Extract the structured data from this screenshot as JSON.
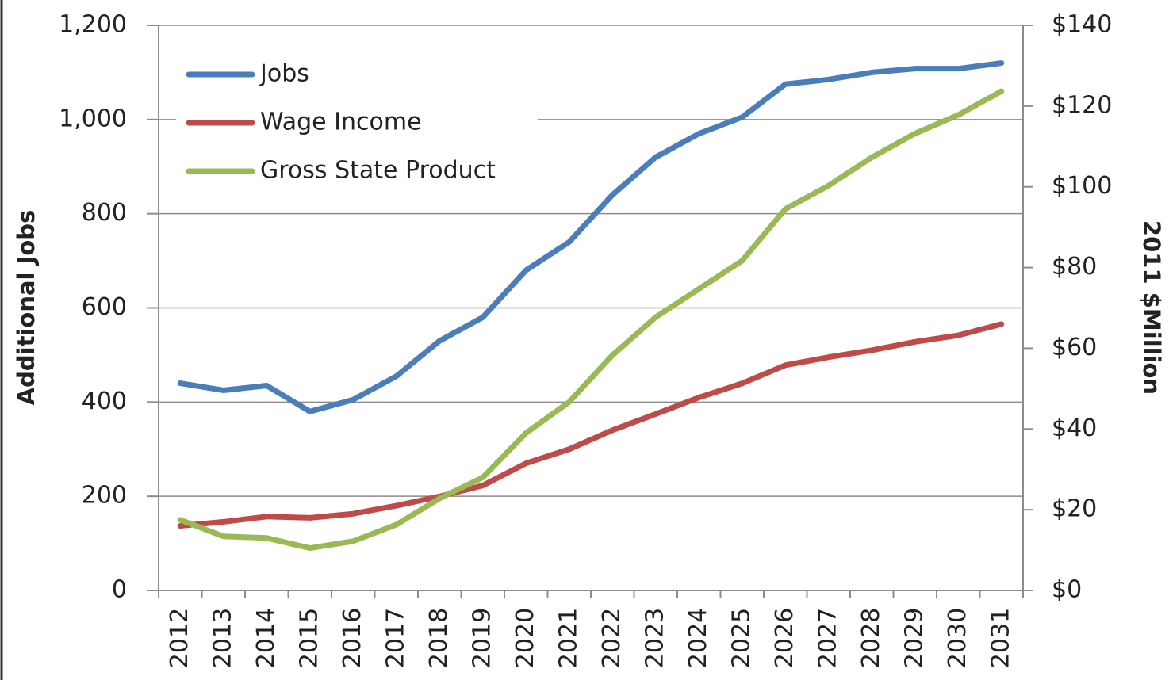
{
  "chart_data": {
    "type": "line",
    "categories": [
      "2012",
      "2013",
      "2014",
      "2015",
      "2016",
      "2017",
      "2018",
      "2019",
      "2020",
      "2021",
      "2022",
      "2023",
      "2024",
      "2025",
      "2026",
      "2027",
      "2028",
      "2029",
      "2030",
      "2031"
    ],
    "series": [
      {
        "name": "Jobs",
        "color": "#4a7ebb",
        "values": [
          440,
          425,
          435,
          380,
          405,
          455,
          530,
          580,
          680,
          740,
          840,
          920,
          970,
          1005,
          1075,
          1085,
          1100,
          1108,
          1108,
          1120
        ]
      },
      {
        "name": "Wage Income",
        "color": "#be4b48",
        "axis": "y2",
        "values": [
          16,
          17,
          18.3,
          18,
          19,
          21,
          23.3,
          26,
          31.5,
          35,
          39.7,
          43.7,
          47.8,
          51.3,
          55.8,
          57.8,
          59.5,
          61.6,
          63.2,
          66
        ]
      },
      {
        "name": "Gross State Product",
        "color": "#98b954",
        "axis": "y2",
        "values": [
          17.5,
          13.4,
          13,
          10.5,
          12.2,
          16.3,
          22.8,
          28,
          39,
          46.7,
          58.3,
          67.7,
          74.7,
          81.7,
          94.5,
          100.3,
          107.3,
          113.2,
          117.8,
          123.7
        ]
      }
    ],
    "y_label": "Additional Jobs",
    "y2_label": "2011 $Million",
    "ylim": [
      0,
      1200
    ],
    "yticks": [
      0,
      200,
      400,
      600,
      800,
      {
        "value": 1000,
        "label": "1,000"
      },
      {
        "value": 1200,
        "label": "1,200"
      }
    ],
    "y2lim": [
      0,
      140
    ],
    "y2ticks": [
      {
        "value": 0,
        "label": "$0"
      },
      {
        "value": 20,
        "label": "$20"
      },
      {
        "value": 40,
        "label": "$40"
      },
      {
        "value": 60,
        "label": "$60"
      },
      {
        "value": 80,
        "label": "$80"
      },
      {
        "value": 100,
        "label": "$100"
      },
      {
        "value": 120,
        "label": "$120"
      },
      {
        "value": 140,
        "label": "$140"
      }
    ],
    "grid": true,
    "legend": "upper left"
  }
}
